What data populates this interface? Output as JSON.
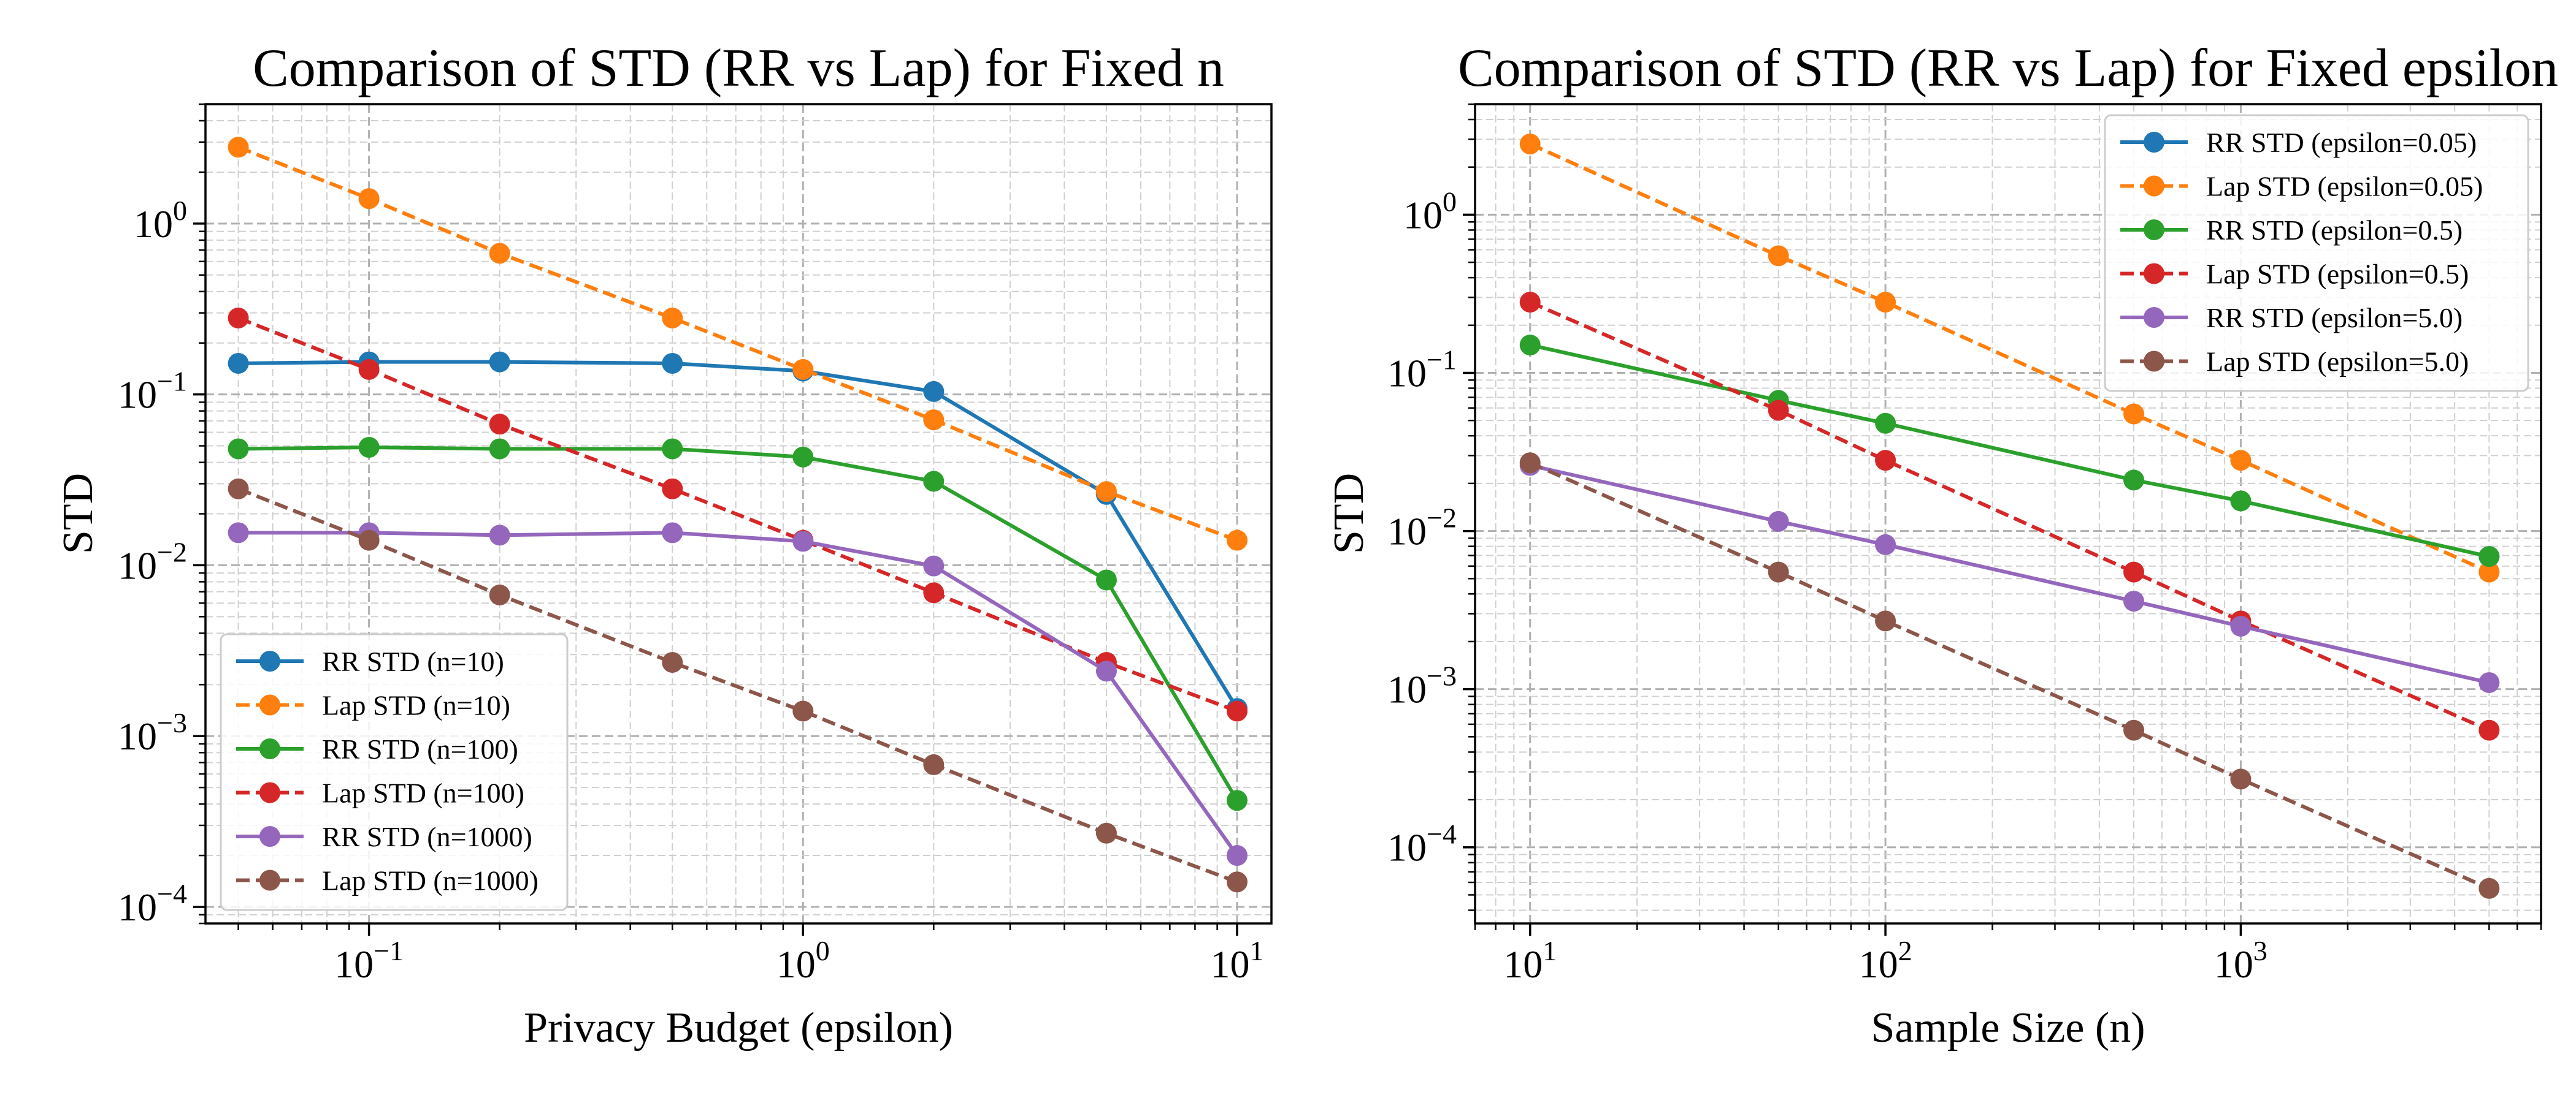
{
  "colors": {
    "blue": "#1f77b4",
    "orange": "#ff7f0e",
    "green": "#2ca02c",
    "red": "#d62728",
    "purple": "#9467bd",
    "brown": "#8c564b"
  },
  "chart_data": [
    {
      "type": "line",
      "title": "Comparison of STD (RR vs Lap) for Fixed n",
      "xlabel": "Privacy Budget (epsilon)",
      "ylabel": "STD",
      "xscale": "log",
      "yscale": "log",
      "xlim": [
        0.042,
        12
      ],
      "ylim": [
        8e-05,
        5
      ],
      "grid": true,
      "legend_position": "lower-left",
      "x_tick_labels": [
        "10^-1",
        "10^0",
        "10^1"
      ],
      "y_tick_labels": [
        "10^-4",
        "10^-3",
        "10^-2",
        "10^-1",
        "10^0"
      ],
      "x": [
        0.05,
        0.1,
        0.2,
        0.5,
        1,
        2,
        5,
        10
      ],
      "series": [
        {
          "name": "RR STD (n=10)",
          "color": "blue",
          "dashed": false,
          "values": [
            0.152,
            0.155,
            0.155,
            0.152,
            0.137,
            0.104,
            0.026,
            0.00145
          ]
        },
        {
          "name": "Lap STD (n=10)",
          "color": "orange",
          "dashed": true,
          "values": [
            2.8,
            1.4,
            0.67,
            0.28,
            0.14,
            0.071,
            0.027,
            0.014
          ]
        },
        {
          "name": "RR STD (n=100)",
          "color": "green",
          "dashed": false,
          "values": [
            0.048,
            0.049,
            0.048,
            0.048,
            0.043,
            0.031,
            0.0082,
            0.00042
          ]
        },
        {
          "name": "Lap STD (n=100)",
          "color": "red",
          "dashed": true,
          "values": [
            0.28,
            0.14,
            0.067,
            0.028,
            0.014,
            0.0069,
            0.0027,
            0.0014
          ]
        },
        {
          "name": "RR STD (n=1000)",
          "color": "purple",
          "dashed": false,
          "values": [
            0.0155,
            0.0155,
            0.015,
            0.0155,
            0.0138,
            0.0099,
            0.0024,
            0.0002
          ]
        },
        {
          "name": "Lap STD (n=1000)",
          "color": "brown",
          "dashed": true,
          "values": [
            0.028,
            0.014,
            0.0067,
            0.0027,
            0.0014,
            0.00068,
            0.00027,
            0.00014
          ]
        }
      ]
    },
    {
      "type": "line",
      "title": "Comparison of STD (RR vs Lap) for Fixed epsilon",
      "xlabel": "Sample Size (n)",
      "ylabel": "STD",
      "xscale": "log",
      "yscale": "log",
      "xlim": [
        7,
        7000
      ],
      "ylim": [
        3.3e-05,
        5
      ],
      "grid": true,
      "legend_position": "top-right",
      "x_tick_labels": [
        "10^1",
        "10^2",
        "10^3"
      ],
      "y_tick_labels": [
        "10^-4",
        "10^-3",
        "10^-2",
        "10^-1",
        "10^0"
      ],
      "x": [
        10,
        50,
        100,
        500,
        1000,
        5000
      ],
      "series": [
        {
          "name": "RR STD (epsilon=0.05)",
          "color": "blue",
          "dashed": false,
          "values": [
            null,
            null,
            null,
            null,
            null,
            0.0069
          ]
        },
        {
          "name": "Lap STD (epsilon=0.05)",
          "color": "orange",
          "dashed": true,
          "values": [
            2.8,
            0.55,
            0.28,
            0.055,
            0.028,
            0.0055
          ]
        },
        {
          "name": "RR STD (epsilon=0.5)",
          "color": "green",
          "dashed": false,
          "values": [
            0.15,
            0.067,
            0.048,
            0.021,
            0.0155,
            0.0069
          ]
        },
        {
          "name": "Lap STD (epsilon=0.5)",
          "color": "red",
          "dashed": true,
          "values": [
            0.28,
            0.058,
            0.028,
            0.0055,
            0.0027,
            0.00055
          ]
        },
        {
          "name": "RR STD (epsilon=5.0)",
          "color": "purple",
          "dashed": false,
          "values": [
            0.026,
            0.0115,
            0.0082,
            0.0036,
            0.0025,
            0.0011
          ]
        },
        {
          "name": "Lap STD (epsilon=5.0)",
          "color": "brown",
          "dashed": true,
          "values": [
            0.027,
            0.0055,
            0.0027,
            0.00055,
            0.00027,
            5.5e-05
          ]
        }
      ]
    }
  ]
}
